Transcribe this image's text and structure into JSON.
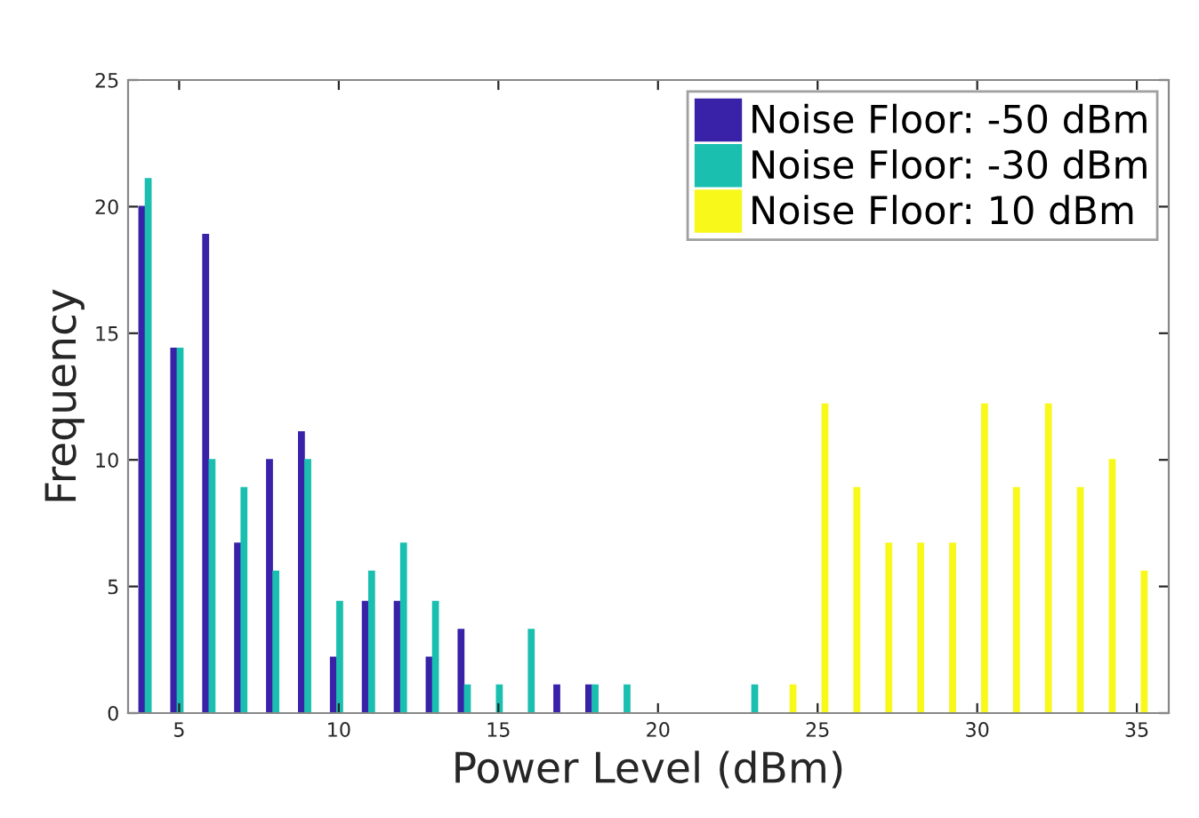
{
  "chart_data": {
    "type": "bar",
    "xlabel": "Power Level (dBm)",
    "ylabel": "Frequency",
    "x": [
      4,
      5,
      6,
      7,
      8,
      9,
      10,
      11,
      12,
      13,
      14,
      15,
      16,
      17,
      18,
      19,
      20,
      21,
      22,
      23,
      24,
      25,
      26,
      27,
      28,
      29,
      30,
      31,
      32,
      33,
      34,
      35
    ],
    "series": [
      {
        "name": "Noise Floor: -50 dBm",
        "color": "#3a22a8",
        "values": [
          20,
          14.4,
          18.9,
          6.7,
          10,
          11.1,
          2.2,
          4.4,
          4.4,
          2.2,
          3.3,
          0,
          0,
          1.1,
          1.1,
          0,
          0,
          0,
          0,
          0,
          0,
          0,
          0,
          0,
          0,
          0,
          0,
          0,
          0,
          0,
          0,
          0
        ]
      },
      {
        "name": "Noise Floor: -30 dBm",
        "color": "#1bbfb0",
        "values": [
          21.1,
          14.4,
          10,
          8.9,
          5.6,
          10,
          4.4,
          5.6,
          6.7,
          4.4,
          1.1,
          1.1,
          3.3,
          0,
          1.1,
          1.1,
          0,
          0,
          0,
          1.1,
          0,
          0,
          0,
          0,
          0,
          0,
          0,
          0,
          0,
          0,
          0,
          0
        ]
      },
      {
        "name": "Noise Floor: 10 dBm",
        "color": "#f8f81a",
        "values": [
          0,
          0,
          0,
          0,
          0,
          0,
          0,
          0,
          0,
          0,
          0,
          0,
          0,
          0,
          0,
          0,
          0,
          0,
          0,
          0,
          1.1,
          12.2,
          8.9,
          6.7,
          6.7,
          6.7,
          12.2,
          8.9,
          12.2,
          8.9,
          10,
          5.6
        ]
      }
    ],
    "xlim": [
      3.4,
      36
    ],
    "xticks": [
      5,
      10,
      15,
      20,
      25,
      30,
      35
    ],
    "ylim": [
      0,
      25
    ],
    "yticks": [
      0,
      5,
      10,
      15,
      20,
      25
    ],
    "grid": false,
    "legend": "top right"
  }
}
